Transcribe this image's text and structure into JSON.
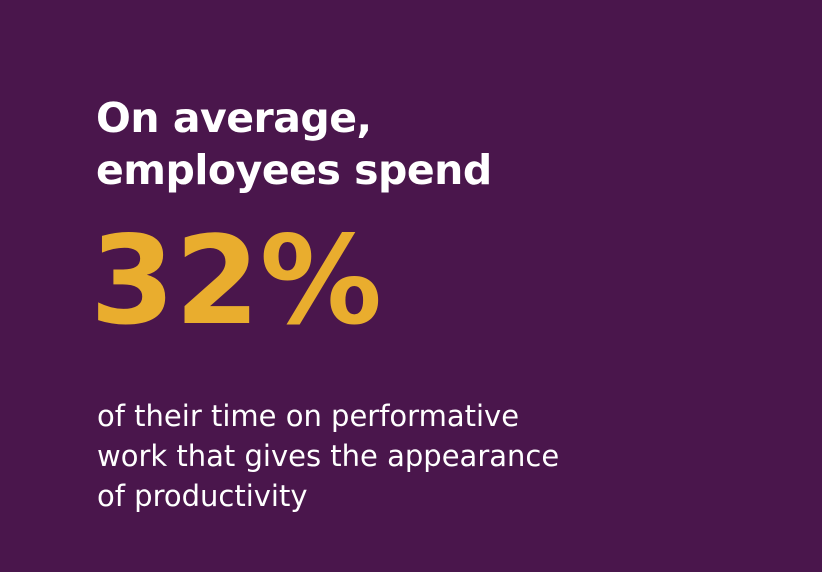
{
  "colors": {
    "background": "#4a164c",
    "text": "#ffffff",
    "accent": "#e9ad2e"
  },
  "headline": {
    "line1": "On average,",
    "line2": "employees spend"
  },
  "stat": {
    "value": "32%"
  },
  "caption": {
    "line1": "of their time on performative",
    "line2": "work that gives the appearance",
    "line3": "of productivity"
  }
}
